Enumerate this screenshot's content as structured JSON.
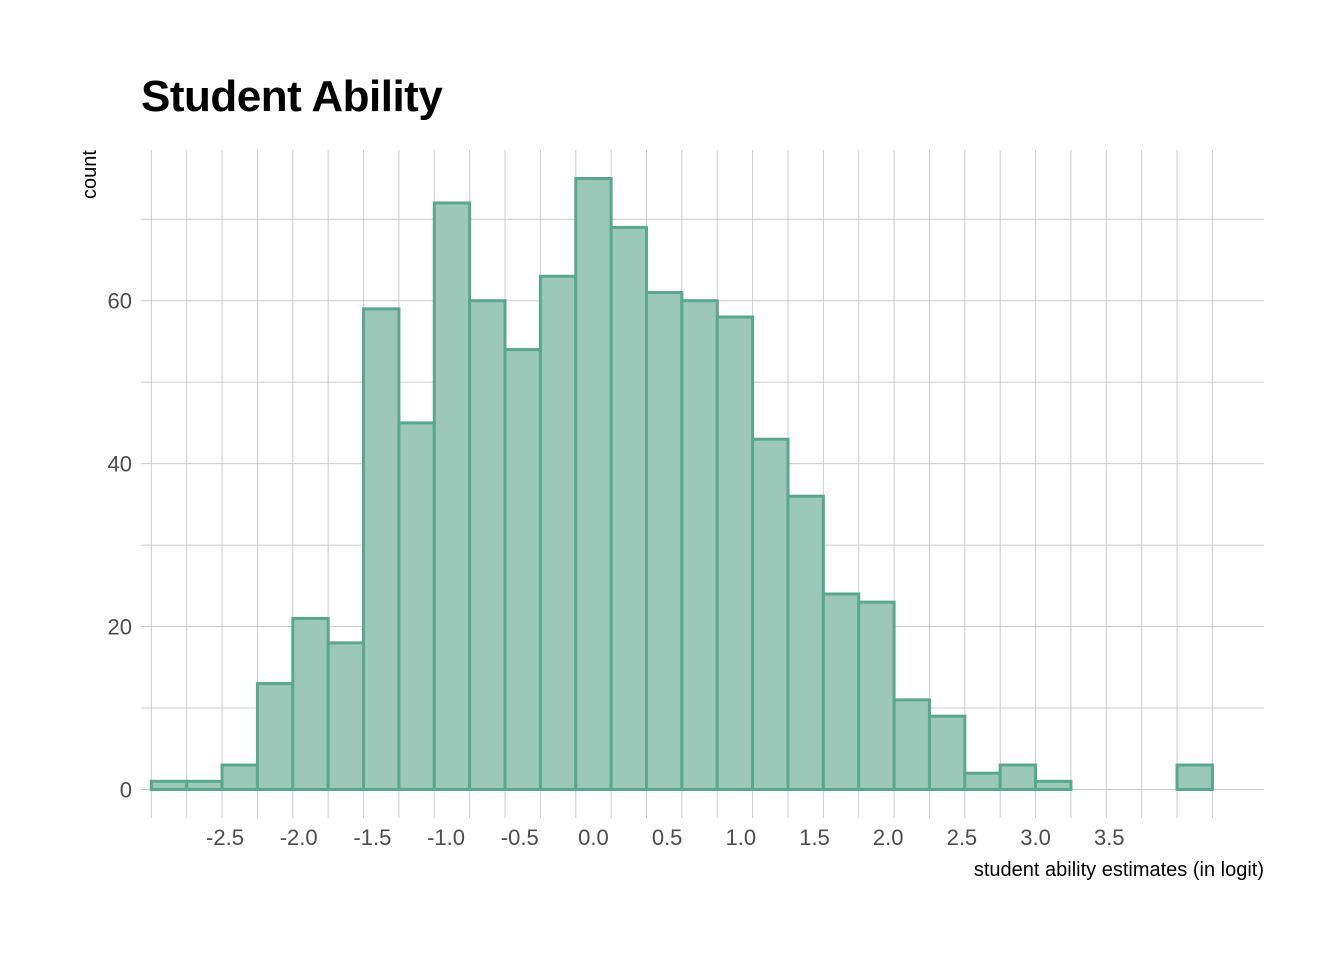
{
  "chart_data": {
    "type": "bar",
    "title": "Student Ability",
    "xlabel": "student ability estimates (in logit)",
    "ylabel": "count",
    "bin_width": 0.24,
    "bins": [
      {
        "x0": -3.0,
        "x1": -2.76,
        "count": 1
      },
      {
        "x0": -2.76,
        "x1": -2.52,
        "count": 1
      },
      {
        "x0": -2.52,
        "x1": -2.28,
        "count": 3
      },
      {
        "x0": -2.28,
        "x1": -2.04,
        "count": 13
      },
      {
        "x0": -2.04,
        "x1": -1.8,
        "count": 21
      },
      {
        "x0": -1.8,
        "x1": -1.56,
        "count": 18
      },
      {
        "x0": -1.56,
        "x1": -1.32,
        "count": 59
      },
      {
        "x0": -1.32,
        "x1": -1.08,
        "count": 45
      },
      {
        "x0": -1.08,
        "x1": -0.84,
        "count": 72
      },
      {
        "x0": -0.84,
        "x1": -0.6,
        "count": 60
      },
      {
        "x0": -0.6,
        "x1": -0.36,
        "count": 54
      },
      {
        "x0": -0.36,
        "x1": -0.12,
        "count": 63
      },
      {
        "x0": -0.12,
        "x1": 0.12,
        "count": 75
      },
      {
        "x0": 0.12,
        "x1": 0.36,
        "count": 69
      },
      {
        "x0": 0.36,
        "x1": 0.6,
        "count": 61
      },
      {
        "x0": 0.6,
        "x1": 0.84,
        "count": 60
      },
      {
        "x0": 0.84,
        "x1": 1.08,
        "count": 58
      },
      {
        "x0": 1.08,
        "x1": 1.32,
        "count": 43
      },
      {
        "x0": 1.32,
        "x1": 1.56,
        "count": 36
      },
      {
        "x0": 1.56,
        "x1": 1.8,
        "count": 24
      },
      {
        "x0": 1.8,
        "x1": 2.04,
        "count": 23
      },
      {
        "x0": 2.04,
        "x1": 2.28,
        "count": 11
      },
      {
        "x0": 2.28,
        "x1": 2.52,
        "count": 9
      },
      {
        "x0": 2.52,
        "x1": 2.76,
        "count": 2
      },
      {
        "x0": 2.76,
        "x1": 3.0,
        "count": 3
      },
      {
        "x0": 3.0,
        "x1": 3.24,
        "count": 1
      },
      {
        "x0": 3.24,
        "x1": 3.48,
        "count": 0
      },
      {
        "x0": 3.48,
        "x1": 3.72,
        "count": 0
      },
      {
        "x0": 3.72,
        "x1": 3.96,
        "count": 0
      },
      {
        "x0": 3.96,
        "x1": 4.2,
        "count": 3
      }
    ],
    "xlim": [
      -3.07,
      4.55
    ],
    "ylim": [
      -3.5,
      78.5
    ],
    "x_ticks": [
      -2.5,
      -2.0,
      -1.5,
      -1.0,
      -0.5,
      0.0,
      0.5,
      1.0,
      1.5,
      2.0,
      2.5,
      3.0,
      3.5
    ],
    "x_tick_labels": [
      "-2.5",
      "-2.0",
      "-1.5",
      "-1.0",
      "-0.5",
      "0.0",
      "0.5",
      "1.0",
      "1.5",
      "2.0",
      "2.5",
      "3.0",
      "3.5"
    ],
    "y_ticks": [
      0,
      20,
      40,
      60
    ],
    "y_tick_labels": [
      "0",
      "20",
      "40",
      "60"
    ],
    "grid": true,
    "legend": "none",
    "colors": {
      "fill": "#9cc8ba",
      "stroke": "#5aa88c",
      "grid": "#cccccc"
    }
  }
}
